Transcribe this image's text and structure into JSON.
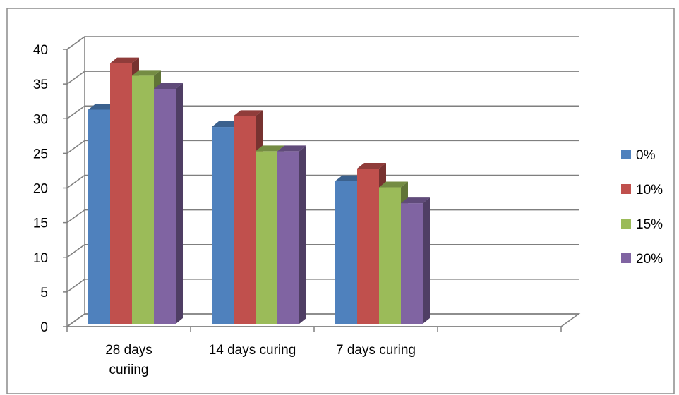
{
  "chart_data": {
    "type": "bar",
    "title": "",
    "xlabel": "",
    "ylabel": "",
    "categories": [
      "28 days curiing",
      "14 days curing",
      "7 days curing"
    ],
    "category_lines": [
      [
        "28 days",
        "curiing"
      ],
      [
        "14 days curing"
      ],
      [
        "7 days curing"
      ]
    ],
    "series": [
      {
        "name": "0%",
        "color": "#4F81BD",
        "values": [
          31.3,
          28.8,
          21.0
        ]
      },
      {
        "name": "10%",
        "color": "#C0504D",
        "values": [
          38.0,
          30.4,
          22.8
        ]
      },
      {
        "name": "15%",
        "color": "#9BBB59",
        "values": [
          36.2,
          25.3,
          20.1
        ]
      },
      {
        "name": "20%",
        "color": "#8064A2",
        "values": [
          34.3,
          25.3,
          17.8
        ]
      }
    ],
    "ylim": [
      0,
      40
    ],
    "yticks": [
      "0",
      "5",
      "10",
      "15",
      "20",
      "25",
      "30",
      "35",
      "40"
    ],
    "grid": true,
    "legend_position": "right",
    "style": "3d-clustered-column"
  }
}
